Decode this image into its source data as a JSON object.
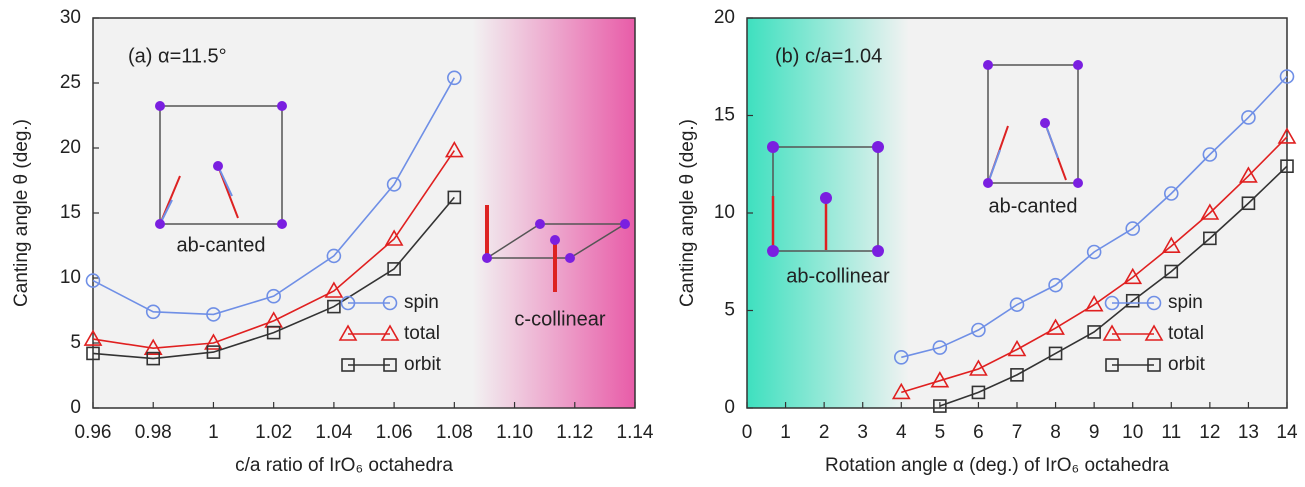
{
  "chart_data": [
    {
      "type": "line",
      "x_label": "c/a ratio of IrO₆ octahedra",
      "y_label": "Canting angle θ (deg.)",
      "annotations": [
        "(a) α=11.5°",
        "ab-canted",
        "c-collinear"
      ],
      "x": [
        0.96,
        0.98,
        1,
        1.02,
        1.04,
        1.06,
        1.08
      ],
      "series": [
        {
          "name": "spin",
          "color": "#6f8fe6",
          "marker": "circle",
          "values": [
            9.8,
            7.4,
            7.2,
            8.6,
            11.7,
            17.2,
            25.4
          ]
        },
        {
          "name": "total",
          "color": "#e02020",
          "marker": "triangle",
          "values": [
            5.3,
            4.6,
            5.0,
            6.7,
            9.0,
            13.0,
            19.8
          ]
        },
        {
          "name": "orbit",
          "color": "#333333",
          "marker": "square",
          "values": [
            4.2,
            3.8,
            4.3,
            5.8,
            7.8,
            10.7,
            16.2
          ]
        }
      ],
      "xlim": [
        0.96,
        1.14
      ],
      "xticks": [
        0.96,
        0.98,
        1,
        1.02,
        1.04,
        1.06,
        1.08,
        {
          "value": 1.1,
          "label": "1.10"
        },
        1.12,
        1.14
      ],
      "ylim": [
        0,
        30
      ],
      "yticks": [
        0,
        5,
        10,
        15,
        20,
        25,
        30
      ],
      "legend": "lower right"
    },
    {
      "type": "line",
      "x_label": "Rotation angle α (deg.) of IrO₆ octahedra",
      "y_label": "Canting angle θ (deg.)",
      "annotations": [
        "(b) c/a=1.04",
        "ab-canted",
        "ab-collinear"
      ],
      "series": [
        {
          "name": "spin",
          "color": "#6f8fe6",
          "marker": "circle",
          "x": [
            4,
            5,
            6,
            7,
            8,
            9,
            10,
            11,
            12,
            13,
            14
          ],
          "values": [
            2.6,
            3.1,
            4.0,
            5.3,
            6.3,
            8.0,
            9.2,
            11.0,
            13.0,
            14.9,
            17.0
          ]
        },
        {
          "name": "total",
          "color": "#e02020",
          "marker": "triangle",
          "x": [
            4,
            5,
            6,
            7,
            8,
            9,
            10,
            11,
            12,
            13,
            14
          ],
          "values": [
            0.8,
            1.4,
            2.0,
            3.0,
            4.1,
            5.3,
            6.7,
            8.3,
            10.0,
            11.9,
            13.9
          ]
        },
        {
          "name": "orbit",
          "color": "#333333",
          "marker": "square",
          "x": [
            5,
            6,
            7,
            8,
            9,
            10,
            11,
            12,
            13,
            14
          ],
          "values": [
            0.1,
            0.8,
            1.7,
            2.8,
            3.9,
            5.5,
            7.0,
            8.7,
            10.5,
            12.4
          ]
        }
      ],
      "xlim": [
        0,
        14
      ],
      "xticks": [
        0,
        1,
        2,
        3,
        4,
        5,
        6,
        7,
        8,
        9,
        10,
        11,
        12,
        13,
        14
      ],
      "ylim": [
        0,
        20
      ],
      "yticks": [
        0,
        5,
        10,
        15,
        20
      ],
      "legend": "lower right"
    }
  ]
}
